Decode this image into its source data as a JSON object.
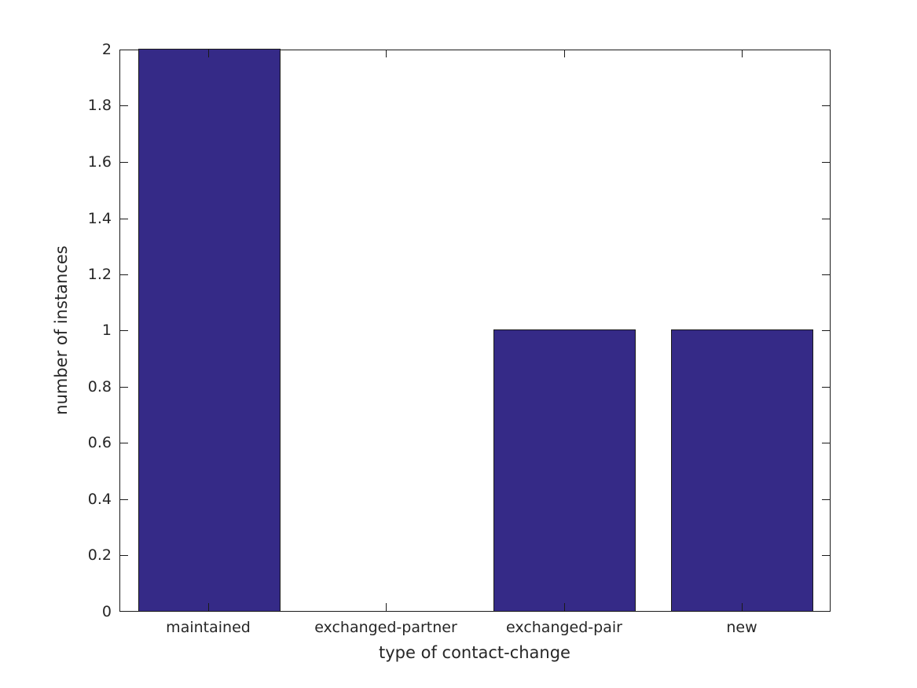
{
  "chart_data": {
    "type": "bar",
    "title": "",
    "categories": [
      "maintained",
      "exchanged-partner",
      "exchanged-pair",
      "new"
    ],
    "values": [
      2,
      0,
      1,
      1
    ],
    "xlabel": "type of contact-change",
    "ylabel": "number of instances",
    "ylim": [
      0,
      2
    ],
    "yticks": [
      0,
      0.2,
      0.4,
      0.6,
      0.8,
      1,
      1.2,
      1.4,
      1.6,
      1.8,
      2
    ],
    "ytick_labels": [
      "0",
      "0.2",
      "0.4",
      "0.6",
      "0.8",
      "1",
      "1.2",
      "1.4",
      "1.6",
      "1.8",
      "2"
    ],
    "bar_color": "#352a87",
    "bar_edge_color": "#1a1a1a",
    "axis_color": "#1a1a1a",
    "text_color": "#262626",
    "background_color": "#ffffff",
    "grid": false,
    "legend": null,
    "legend_position": "none",
    "bar_relative_width": 0.8,
    "tick_direction": "in",
    "box": true
  }
}
